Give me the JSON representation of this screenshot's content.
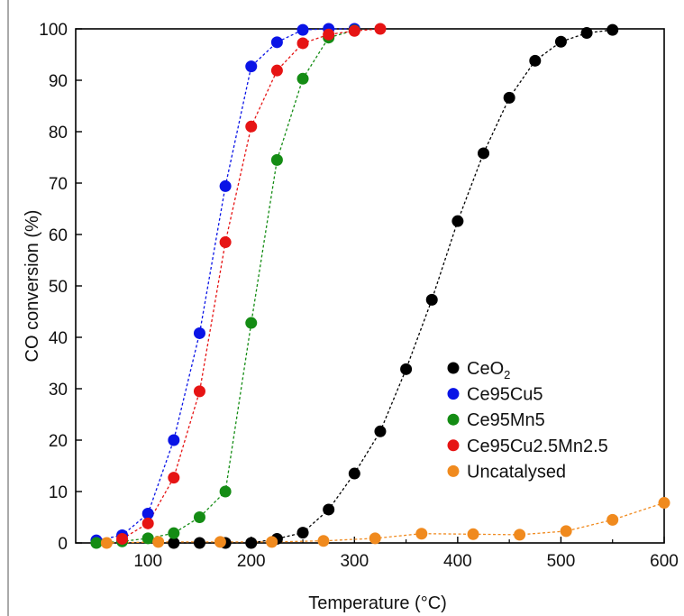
{
  "chart_data": {
    "type": "scatter",
    "xlabel": "Temperature (°C)",
    "ylabel": "CO conversion (%)",
    "xlim": [
      30,
      600
    ],
    "ylim": [
      0,
      100
    ],
    "xticks": [
      "100",
      "200",
      "300",
      "400",
      "500",
      "600"
    ],
    "yticks": [
      "0",
      "10",
      "20",
      "30",
      "40",
      "50",
      "60",
      "70",
      "80",
      "90",
      "100"
    ],
    "grid": false,
    "legend_position": "bottom-right",
    "connector": "dashed",
    "series": [
      {
        "name": "CeO",
        "name_subscript": "2",
        "color": "#000000",
        "x": [
          125,
          150,
          175,
          200,
          225,
          250,
          275,
          300,
          325,
          350,
          375,
          400,
          425,
          450,
          475,
          500,
          525,
          550
        ],
        "y": [
          0,
          0,
          0,
          0,
          0.8,
          2,
          6.5,
          13.5,
          21.7,
          33.8,
          47.3,
          62.6,
          75.8,
          86.6,
          93.8,
          97.5,
          99.2,
          99.8
        ]
      },
      {
        "name": "Ce95Cu5",
        "color": "#0a14e6",
        "x": [
          50,
          75,
          100,
          125,
          150,
          175,
          200,
          225,
          250,
          275,
          300
        ],
        "y": [
          0.5,
          1.5,
          5.7,
          20,
          40.8,
          69.4,
          92.7,
          97.4,
          99.8,
          100,
          100
        ]
      },
      {
        "name": "Ce95Mn5",
        "color": "#148c14",
        "x": [
          50,
          75,
          100,
          125,
          150,
          175,
          200,
          225,
          250,
          275,
          300
        ],
        "y": [
          0,
          0.3,
          0.9,
          1.9,
          5,
          10,
          42.8,
          74.5,
          90.3,
          98.3,
          99.7
        ]
      },
      {
        "name": "Ce95Cu2.5Mn2.5",
        "color": "#e61414",
        "x": [
          75,
          100,
          125,
          150,
          175,
          200,
          225,
          250,
          275,
          300,
          325
        ],
        "y": [
          0.8,
          3.8,
          12.7,
          29.5,
          58.5,
          81,
          91.9,
          97.2,
          98.9,
          99.6,
          100
        ]
      },
      {
        "name": "Uncatalysed",
        "color": "#f08a1e",
        "x": [
          60,
          110,
          170,
          220,
          270,
          320,
          365,
          415,
          460,
          505,
          550,
          600
        ],
        "y": [
          0,
          0.2,
          0.2,
          0.2,
          0.4,
          0.9,
          1.8,
          1.7,
          1.6,
          2.3,
          4.5,
          7.8
        ]
      }
    ]
  }
}
